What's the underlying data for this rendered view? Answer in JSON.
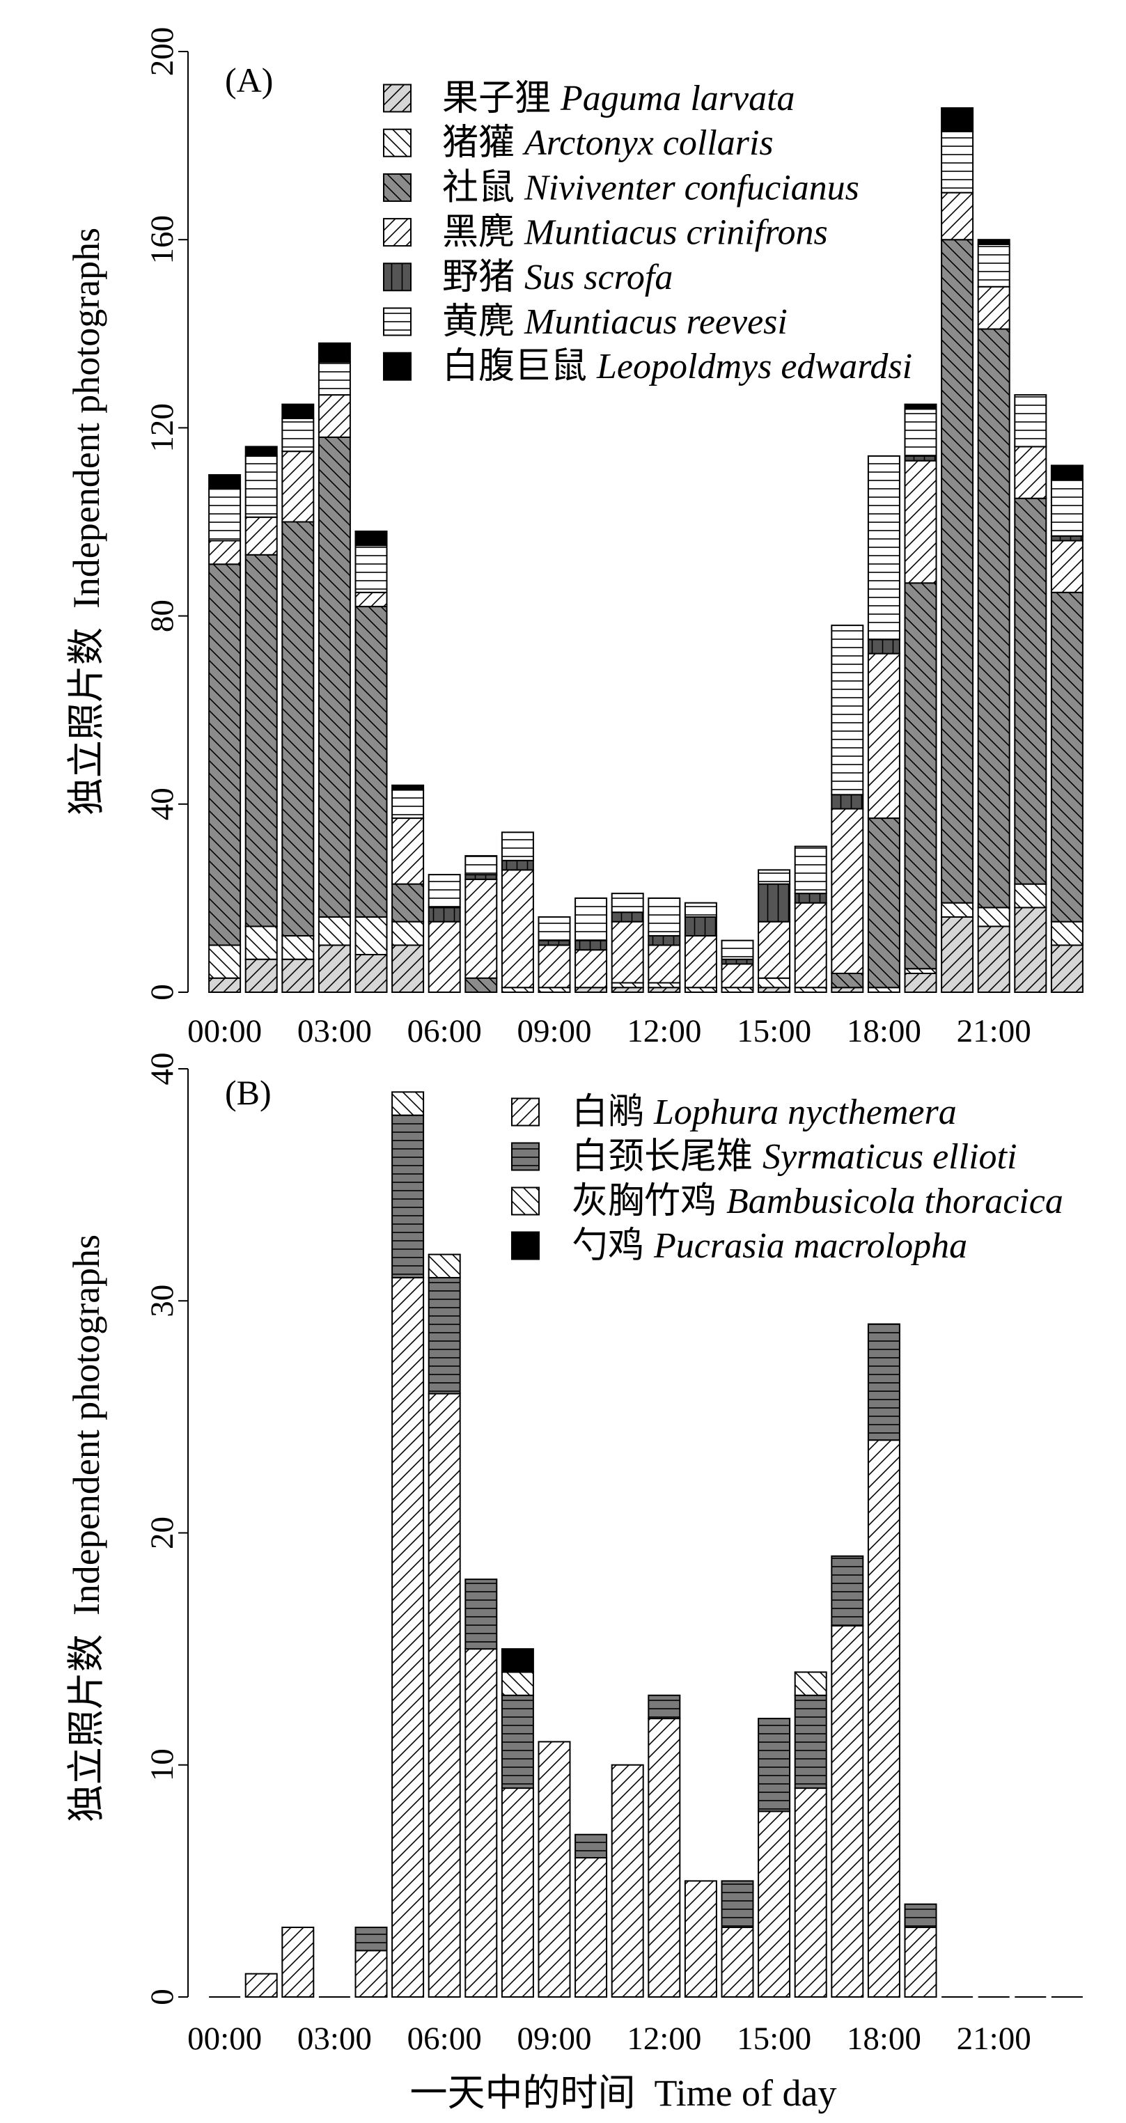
{
  "chart_data": [
    {
      "type": "bar",
      "stacked": true,
      "panel_label": "(A)",
      "title": "",
      "ylabel": "独立照片数  Independent photographs",
      "xlabel": "",
      "ylim": [
        0,
        200
      ],
      "yticks": [
        0,
        40,
        80,
        120,
        160,
        200
      ],
      "x": [
        0,
        1,
        2,
        3,
        4,
        5,
        6,
        7,
        8,
        9,
        10,
        11,
        12,
        13,
        14,
        15,
        16,
        17,
        18,
        19,
        20,
        21,
        22,
        23
      ],
      "xticks": [
        0,
        3,
        6,
        9,
        12,
        15,
        18,
        21
      ],
      "xtick_labels": [
        "00:00",
        "03:00",
        "06:00",
        "09:00",
        "12:00",
        "15:00",
        "18:00",
        "21:00"
      ],
      "grid": false,
      "legend_position": "top-right",
      "series": [
        {
          "name_cn": "果子狸",
          "name_latin": "Paguma larvata",
          "color": "#d6d6d6",
          "hatch": "forward",
          "values": [
            3,
            7,
            7,
            10,
            8,
            10,
            0,
            0,
            0,
            0,
            1,
            1,
            1,
            0,
            0,
            1,
            0,
            1,
            0,
            4,
            16,
            14,
            18,
            10
          ]
        },
        {
          "name_cn": "猪獾",
          "name_latin": "Arctonyx collaris",
          "color": "#ffffff",
          "hatch": "backward",
          "values": [
            7,
            7,
            5,
            6,
            8,
            5,
            0,
            0,
            1,
            1,
            0,
            1,
            1,
            1,
            1,
            2,
            1,
            0,
            1,
            1,
            3,
            4,
            5,
            5
          ]
        },
        {
          "name_cn": "社鼠",
          "name_latin": "Niviventer confucianus",
          "color": "#8c8c8c",
          "hatch": "backward",
          "values": [
            81,
            79,
            88,
            102,
            66,
            8,
            0,
            3,
            0,
            0,
            0,
            0,
            0,
            0,
            0,
            0,
            0,
            3,
            36,
            82,
            141,
            123,
            82,
            70
          ]
        },
        {
          "name_cn": "黑麂",
          "name_latin": "Muntiacus crinifrons",
          "color": "#ffffff",
          "hatch": "forward",
          "values": [
            5,
            8,
            15,
            9,
            3,
            14,
            15,
            21,
            25,
            9,
            8,
            13,
            8,
            11,
            5,
            12,
            18,
            35,
            35,
            26,
            10,
            9,
            11,
            11
          ]
        },
        {
          "name_cn": "野猪",
          "name_latin": "Sus scrofa",
          "color": "#555555",
          "hatch": "vertical",
          "values": [
            0,
            0,
            0,
            0,
            0,
            0,
            3,
            1,
            2,
            1,
            2,
            2,
            2,
            4,
            1,
            8,
            2,
            3,
            3,
            1,
            0,
            0,
            0,
            1
          ]
        },
        {
          "name_cn": "黄麂",
          "name_latin": "Muntiacus reevesi",
          "color": "#ffffff",
          "hatch": "horizontal",
          "values": [
            11,
            13,
            7,
            7,
            10,
            6,
            7,
            4,
            6,
            5,
            9,
            4,
            8,
            3,
            4,
            3,
            10,
            36,
            39,
            10,
            13,
            9,
            11,
            12
          ]
        },
        {
          "name_cn": "白腹巨鼠",
          "name_latin": "Leopoldmys edwardsi",
          "color": "#000000",
          "hatch": "none",
          "values": [
            3,
            2,
            3,
            4,
            3,
            1,
            0,
            0,
            0,
            0,
            0,
            0,
            0,
            0,
            0,
            0,
            0,
            0,
            0,
            1,
            5,
            1,
            0,
            3
          ]
        }
      ]
    },
    {
      "type": "bar",
      "stacked": true,
      "panel_label": "(B)",
      "title": "",
      "ylabel": "独立照片数  Independent photographs",
      "xlabel": "一天中的时间  Time of day",
      "ylim": [
        0,
        40
      ],
      "yticks": [
        0,
        10,
        20,
        30,
        40
      ],
      "x": [
        0,
        1,
        2,
        3,
        4,
        5,
        6,
        7,
        8,
        9,
        10,
        11,
        12,
        13,
        14,
        15,
        16,
        17,
        18,
        19,
        20,
        21,
        22,
        23
      ],
      "xticks": [
        0,
        3,
        6,
        9,
        12,
        15,
        18,
        21
      ],
      "xtick_labels": [
        "00:00",
        "03:00",
        "06:00",
        "09:00",
        "12:00",
        "15:00",
        "18:00",
        "21:00"
      ],
      "grid": false,
      "legend_position": "top-right",
      "series": [
        {
          "name_cn": "白鹇",
          "name_latin": "Lophura nycthemera",
          "color": "#ffffff",
          "hatch": "forward",
          "values": [
            0,
            1,
            3,
            0,
            2,
            31,
            26,
            15,
            9,
            11,
            6,
            10,
            12,
            5,
            3,
            8,
            9,
            16,
            24,
            3,
            0,
            0,
            0,
            0
          ]
        },
        {
          "name_cn": "白颈长尾雉",
          "name_latin": "Syrmaticus ellioti",
          "color": "#7a7a7a",
          "hatch": "horizontal",
          "values": [
            0,
            0,
            0,
            0,
            1,
            7,
            5,
            3,
            4,
            0,
            1,
            0,
            1,
            0,
            2,
            4,
            4,
            3,
            5,
            1,
            0,
            0,
            0,
            0
          ]
        },
        {
          "name_cn": "灰胸竹鸡",
          "name_latin": "Bambusicola thoracica",
          "color": "#ffffff",
          "hatch": "backward",
          "values": [
            0,
            0,
            0,
            0,
            0,
            1,
            1,
            0,
            1,
            0,
            0,
            0,
            0,
            0,
            0,
            0,
            1,
            0,
            0,
            0,
            0,
            0,
            0,
            0
          ]
        },
        {
          "name_cn": "勺鸡",
          "name_latin": "Pucrasia macrolopha",
          "color": "#000000",
          "hatch": "none",
          "values": [
            0,
            0,
            0,
            0,
            0,
            0,
            0,
            0,
            1,
            0,
            0,
            0,
            0,
            0,
            0,
            0,
            0,
            0,
            0,
            0,
            0,
            0,
            0,
            0
          ]
        }
      ]
    }
  ]
}
